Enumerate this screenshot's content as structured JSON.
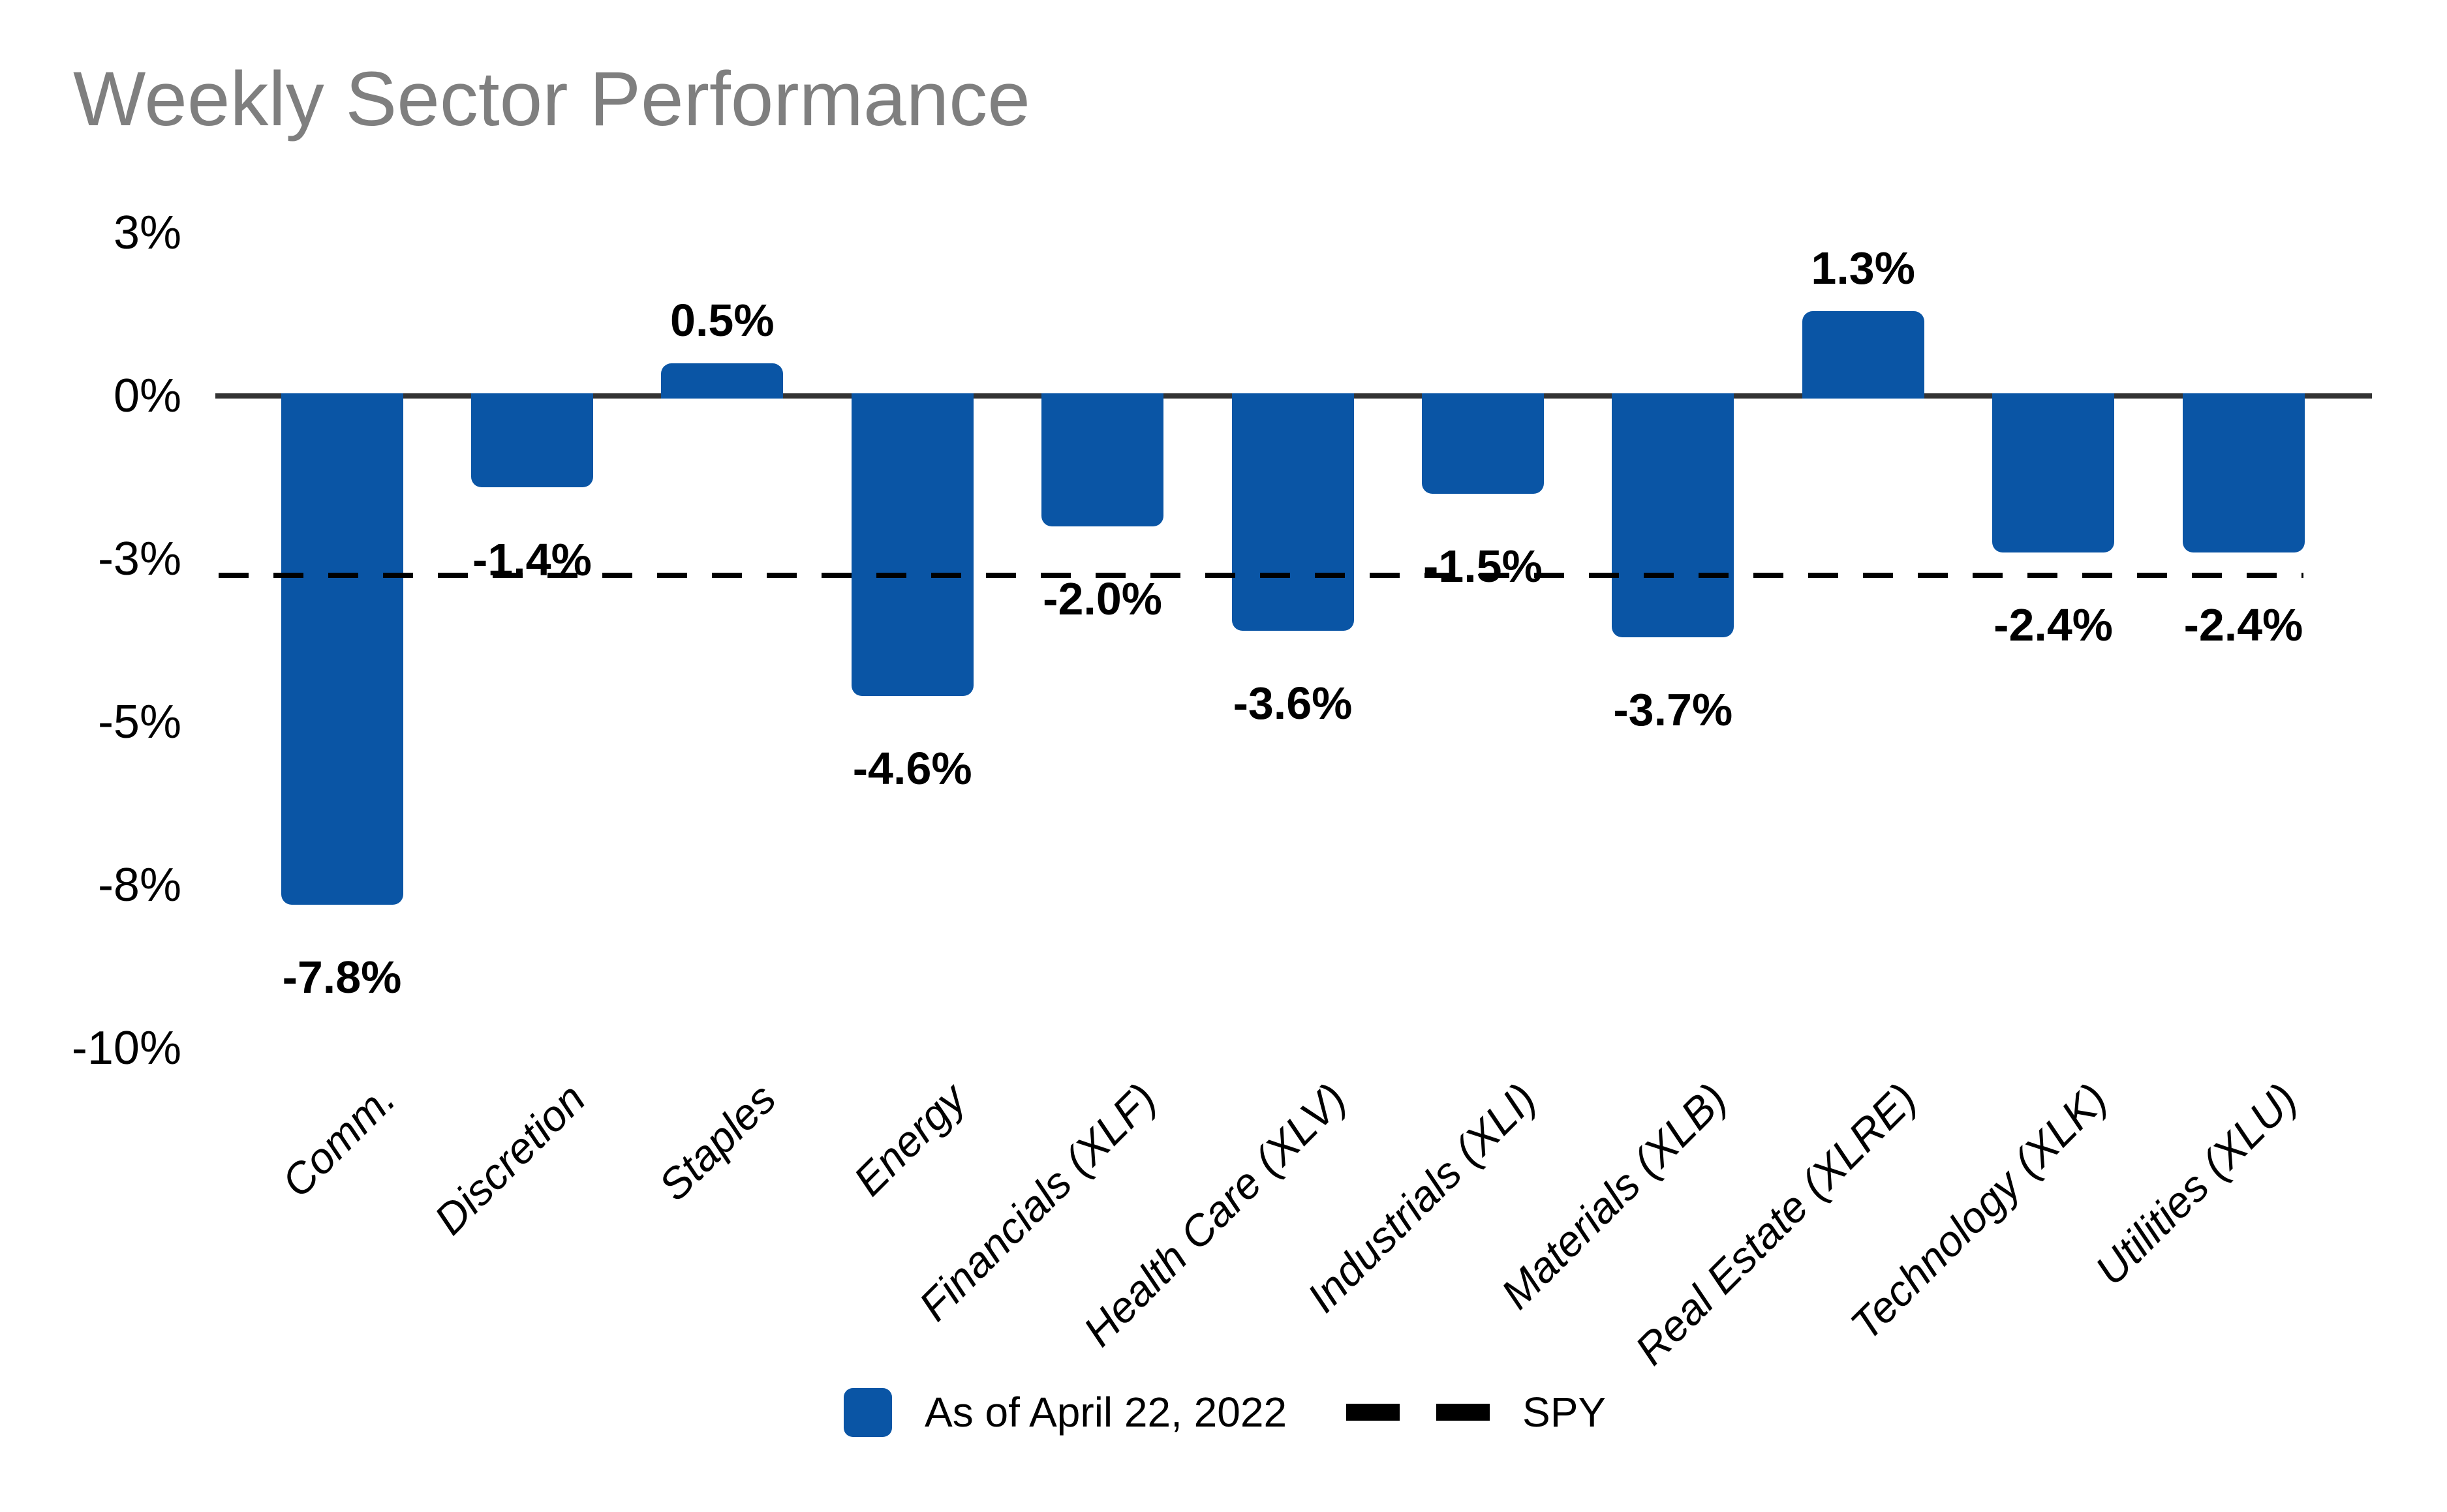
{
  "title": {
    "text": "Weekly Sector Performance",
    "color": "#7f7f7f"
  },
  "colors": {
    "bar": "#0a55a5",
    "axis": "#333333",
    "dashed_line": "#000000",
    "title": "#7f7f7f",
    "label_text": "#000000"
  },
  "chart_data": {
    "type": "bar",
    "title": "Weekly Sector Performance",
    "categories": [
      "Comm.",
      "Discretion",
      "Staples",
      "Energy",
      "Financials (XLF)",
      "Health Care (XLV)",
      "Industrials (XLI)",
      "Materials (XLB)",
      "Real Estate (XLRE)",
      "Technology (XLK)",
      "Utilities (XLU)"
    ],
    "values": [
      -7.8,
      -1.4,
      0.5,
      -4.6,
      -2.0,
      -3.6,
      -1.5,
      -3.7,
      1.3,
      -2.4,
      -2.4
    ],
    "data_labels": [
      "-7.8%",
      "-1.4%",
      "0.5%",
      "-4.6%",
      "-2.0%",
      "-3.6%",
      "-1.5%",
      "-3.7%",
      "1.3%",
      "-2.4%",
      "-2.4%"
    ],
    "series_name": "As of April 22, 2022",
    "reference_line": {
      "name": "SPY",
      "value": -2.75,
      "style": "dashed"
    },
    "y_ticks": [
      {
        "value": 2.5,
        "label": "3%"
      },
      {
        "value": 0,
        "label": "0%"
      },
      {
        "value": -2.5,
        "label": "-3%"
      },
      {
        "value": -5,
        "label": "-5%"
      },
      {
        "value": -7.5,
        "label": "-8%"
      },
      {
        "value": -10,
        "label": "-10%"
      }
    ],
    "ylim": [
      -10,
      2.5
    ],
    "grid": false,
    "legend_position": "bottom-center",
    "xlabel": "",
    "ylabel": ""
  },
  "legend": {
    "items": [
      {
        "type": "swatch",
        "label": "As of April 22, 2022"
      },
      {
        "type": "dashed-line",
        "label": "SPY"
      }
    ]
  }
}
